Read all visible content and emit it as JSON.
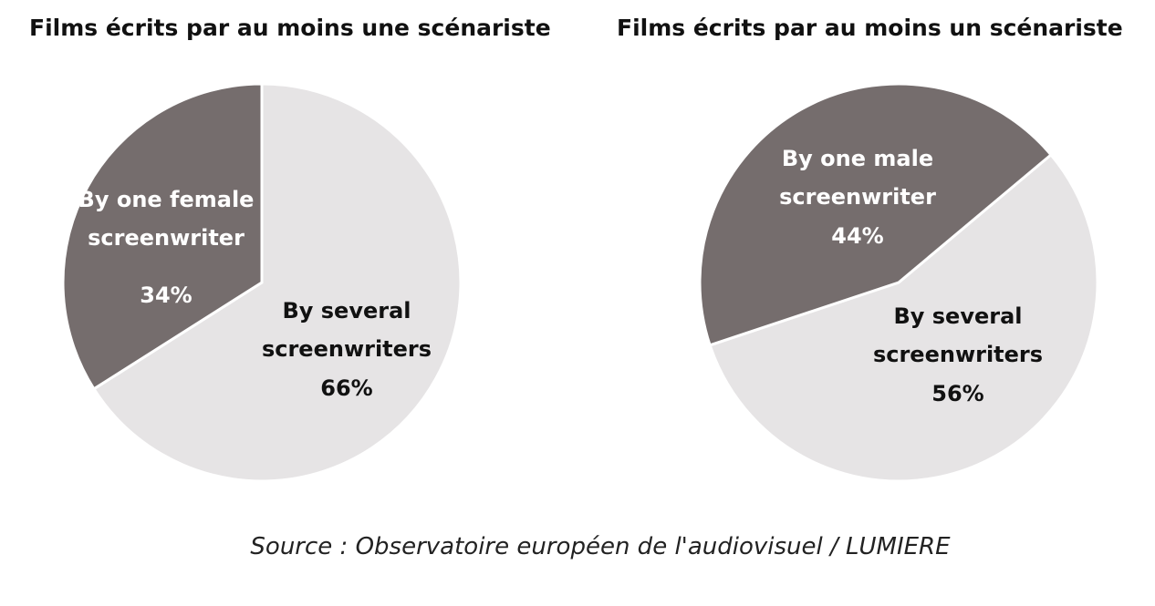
{
  "chart_data": [
    {
      "type": "pie",
      "title": "Films écrits par au moins une scénariste",
      "start_angle": 0,
      "categories": [
        "By several screenwriters",
        "By one female screenwriter"
      ],
      "values": [
        66,
        34
      ],
      "value_labels": [
        "66%",
        "34%"
      ],
      "colors": [
        "#e6e4e5",
        "#756d6d"
      ],
      "label_colors": [
        "#111111",
        "#ffffff"
      ]
    },
    {
      "type": "pie",
      "title": "Films écrits par au moins un scénariste",
      "start_angle": 50,
      "categories": [
        "By several screenwriters",
        "By one male screenwriter"
      ],
      "values": [
        56,
        44
      ],
      "value_labels": [
        "56%",
        "44%"
      ],
      "colors": [
        "#e6e4e5",
        "#756d6d"
      ],
      "label_colors": [
        "#111111",
        "#ffffff"
      ]
    }
  ],
  "source": "Source : Observatoire européen de l'audiovisuel / LUMIERE"
}
